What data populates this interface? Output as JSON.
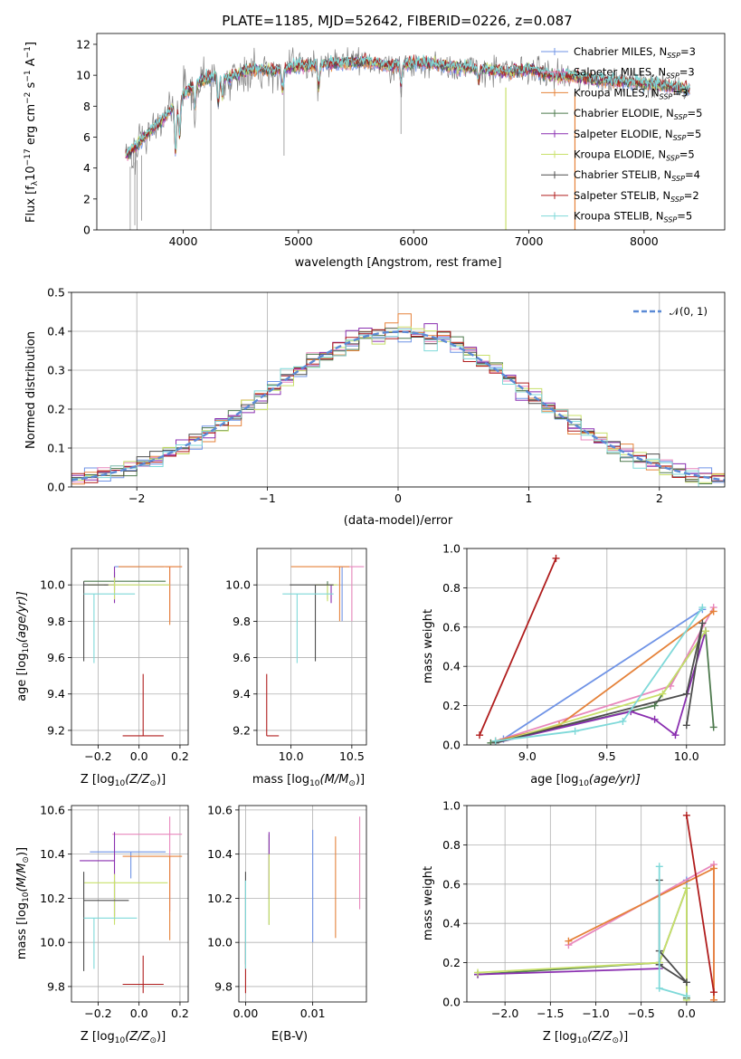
{
  "title": "PLATE=1185, MJD=52642, FIBERID=0226, z=0.087",
  "colors": {
    "Chabrier MILES": "#6f93e6",
    "Salpeter MILES": "#e887bd",
    "Kroupa MILES": "#e5823a",
    "Chabrier ELODIE": "#4e7a4e",
    "Salpeter ELODIE": "#8a2fb0",
    "Kroupa ELODIE": "#c8e06a",
    "Chabrier STELIB": "#4d4d4d",
    "Salpeter STELIB": "#b01d1d",
    "Kroupa STELIB": "#7fd9d9",
    "data": "#808080",
    "normal": "#5b8ad6"
  },
  "chart_data": [
    {
      "id": "spectrum",
      "type": "line",
      "xlabel": "wavelength [Angstrom, rest frame]",
      "ylabel": "Flux [f",
      "xlim": [
        3250,
        8700
      ],
      "ylim": [
        0,
        12.7
      ],
      "xticks": [
        4000,
        5000,
        6000,
        7000,
        8000
      ],
      "yticks": [
        0,
        2,
        4,
        6,
        8,
        10,
        12
      ],
      "grid": false,
      "legend_position": "top-right",
      "legend": [
        {
          "label": "Chabrier MILES, N",
          "n": "=3"
        },
        {
          "label": "Salpeter MILES, N",
          "n": "=3"
        },
        {
          "label": "Kroupa MILES, N",
          "n": "=3"
        },
        {
          "label": "Chabrier ELODIE, N",
          "n": "=5"
        },
        {
          "label": "Salpeter ELODIE, N",
          "n": "=5"
        },
        {
          "label": "Kroupa ELODIE, N",
          "n": "=5"
        },
        {
          "label": "Chabrier STELIB, N",
          "n": "=4"
        },
        {
          "label": "Salpeter STELIB, N",
          "n": "=2"
        },
        {
          "label": "Kroupa STELIB, N",
          "n": "=5"
        }
      ],
      "continuum": {
        "x": [
          3500,
          3600,
          3700,
          3800,
          3900,
          4000,
          4100,
          4200,
          4300,
          4400,
          4500,
          4600,
          4800,
          5000,
          5200,
          5400,
          5600,
          5800,
          6000,
          6200,
          6400,
          6600,
          6800,
          7000,
          7200,
          7400,
          7600,
          7800,
          8000,
          8200,
          8400
        ],
        "y": [
          4.8,
          5.5,
          6.3,
          7.0,
          7.8,
          8.8,
          9.4,
          9.8,
          10.0,
          9.8,
          10.2,
          10.4,
          10.3,
          10.6,
          10.7,
          10.8,
          10.9,
          10.6,
          10.8,
          10.7,
          10.5,
          10.4,
          10.2,
          10.4,
          10.0,
          9.9,
          9.7,
          9.6,
          9.5,
          9.3,
          9.1
        ]
      }
    },
    {
      "id": "residuals",
      "type": "histogram",
      "xlabel": "(data-model)/error",
      "ylabel": "Normed distribution",
      "xlim": [
        -2.5,
        2.5
      ],
      "ylim": [
        0,
        0.5
      ],
      "xticks": [
        -2,
        -1,
        0,
        1,
        2
      ],
      "yticks": [
        0.0,
        0.1,
        0.2,
        0.3,
        0.4,
        0.5
      ],
      "grid": true,
      "legend_position": "top-right",
      "legend_label": "𝒩(0, 1)",
      "bin_width": 0.1
    },
    {
      "id": "age-vs-Z",
      "type": "errorbar",
      "xlabel": "Z [log",
      "ylabel": "age  [log",
      "xlim": [
        -0.33,
        0.24
      ],
      "ylim": [
        9.12,
        10.2
      ],
      "xticks": [
        -0.2,
        0.0,
        0.2
      ],
      "yticks": [
        9.2,
        9.4,
        9.6,
        9.8,
        10.0
      ],
      "grid": true,
      "points": [
        {
          "model": "Chabrier MILES",
          "x": -0.04,
          "xerr": [
            0.08,
            0.16
          ],
          "y": 10.1,
          "yerr": [
            0.0,
            0.0
          ]
        },
        {
          "model": "Salpeter MILES",
          "x": 0.15,
          "xerr": [
            0.02,
            0.06
          ],
          "y": 10.1,
          "yerr": [
            0.3,
            0.0
          ]
        },
        {
          "model": "Kroupa MILES",
          "x": 0.15,
          "xerr": [
            0.25,
            0.06
          ],
          "y": 10.1,
          "yerr": [
            0.32,
            0.0
          ]
        },
        {
          "model": "Chabrier ELODIE",
          "x": -0.12,
          "xerr": [
            0.15,
            0.25
          ],
          "y": 10.02,
          "yerr": [
            0.05,
            0.05
          ]
        },
        {
          "model": "Salpeter ELODIE",
          "x": -0.12,
          "xerr": [
            0.05,
            0.0
          ],
          "y": 10.0,
          "yerr": [
            0.1,
            0.1
          ]
        },
        {
          "model": "Kroupa ELODIE",
          "x": -0.12,
          "xerr": [
            0.13,
            0.27
          ],
          "y": 10.0,
          "yerr": [
            0.08,
            0.04
          ]
        },
        {
          "model": "Chabrier STELIB",
          "x": -0.27,
          "xerr": [
            0.0,
            0.12
          ],
          "y": 10.0,
          "yerr": [
            0.42,
            0.02
          ]
        },
        {
          "model": "Salpeter STELIB",
          "x": 0.02,
          "xerr": [
            0.1,
            0.1
          ],
          "y": 9.17,
          "yerr": [
            0.0,
            0.34
          ]
        },
        {
          "model": "Kroupa STELIB",
          "x": -0.22,
          "xerr": [
            0.05,
            0.2
          ],
          "y": 9.95,
          "yerr": [
            0.38,
            0.0
          ]
        }
      ]
    },
    {
      "id": "age-vs-mass",
      "type": "errorbar",
      "xlabel": "mass [log",
      "ylabel": "",
      "xlim": [
        9.72,
        10.62
      ],
      "ylim": [
        9.12,
        10.2
      ],
      "xticks": [
        10.0,
        10.5
      ],
      "yticks": [
        9.2,
        9.4,
        9.6,
        9.8,
        10.0
      ],
      "grid": true,
      "points": [
        {
          "model": "Chabrier MILES",
          "x": 10.42,
          "xerr": [
            0.0,
            0.0
          ],
          "y": 10.1,
          "yerr": [
            0.3,
            0.0
          ]
        },
        {
          "model": "Salpeter MILES",
          "x": 10.5,
          "xerr": [
            0.15,
            0.1
          ],
          "y": 10.1,
          "yerr": [
            0.3,
            0.0
          ]
        },
        {
          "model": "Kroupa MILES",
          "x": 10.4,
          "xerr": [
            0.4,
            0.08
          ],
          "y": 10.1,
          "yerr": [
            0.3,
            0.0
          ]
        },
        {
          "model": "Chabrier ELODIE",
          "x": 10.3,
          "xerr": [
            0.0,
            0.0
          ],
          "y": 10.02,
          "yerr": [
            0.1,
            0.0
          ]
        },
        {
          "model": "Salpeter ELODIE",
          "x": 10.33,
          "xerr": [
            0.0,
            0.0
          ],
          "y": 10.0,
          "yerr": [
            0.1,
            0.0
          ]
        },
        {
          "model": "Kroupa ELODIE",
          "x": 10.3,
          "xerr": [
            0.1,
            0.08
          ],
          "y": 10.0,
          "yerr": [
            0.09,
            0.0
          ]
        },
        {
          "model": "Chabrier STELIB",
          "x": 10.2,
          "xerr": [
            0.21,
            0.15
          ],
          "y": 10.0,
          "yerr": [
            0.42,
            0.0
          ]
        },
        {
          "model": "Salpeter STELIB",
          "x": 9.8,
          "xerr": [
            0.0,
            0.1
          ],
          "y": 9.17,
          "yerr": [
            0.0,
            0.34
          ]
        },
        {
          "model": "Kroupa STELIB",
          "x": 10.05,
          "xerr": [
            0.12,
            0.3
          ],
          "y": 9.95,
          "yerr": [
            0.38,
            0.0
          ]
        }
      ]
    },
    {
      "id": "massweight-vs-age",
      "type": "line",
      "xlabel": "age  [log",
      "ylabel": "mass weight",
      "xlim": [
        8.62,
        10.24
      ],
      "ylim": [
        0,
        1.0
      ],
      "xticks": [
        9.0,
        9.5,
        10.0
      ],
      "yticks": [
        0.0,
        0.2,
        0.4,
        0.6,
        0.8,
        1.0
      ],
      "grid": true,
      "series": [
        {
          "model": "Chabrier MILES",
          "x": [
            8.85,
            10.1
          ],
          "y": [
            0.03,
            0.69
          ]
        },
        {
          "model": "Salpeter MILES",
          "x": [
            8.8,
            9.9,
            10.17
          ],
          "y": [
            0.02,
            0.3,
            0.7
          ]
        },
        {
          "model": "Kroupa MILES",
          "x": [
            8.8,
            9.2,
            10.17
          ],
          "y": [
            0.02,
            0.1,
            0.68
          ]
        },
        {
          "model": "Chabrier ELODIE",
          "x": [
            8.77,
            9.8,
            10.12,
            10.17
          ],
          "y": [
            0.01,
            0.2,
            0.58,
            0.09
          ]
        },
        {
          "model": "Salpeter ELODIE",
          "x": [
            8.8,
            9.65,
            9.8,
            9.93,
            10.12
          ],
          "y": [
            0.01,
            0.17,
            0.13,
            0.05,
            0.58
          ]
        },
        {
          "model": "Kroupa ELODIE",
          "x": [
            8.8,
            9.85,
            10.12
          ],
          "y": [
            0.01,
            0.26,
            0.58
          ]
        },
        {
          "model": "Chabrier STELIB",
          "x": [
            8.8,
            10.0,
            10.1,
            10.0
          ],
          "y": [
            0.01,
            0.26,
            0.62,
            0.1
          ]
        },
        {
          "model": "Salpeter STELIB",
          "x": [
            8.7,
            9.18
          ],
          "y": [
            0.05,
            0.95
          ]
        },
        {
          "model": "Kroupa STELIB",
          "x": [
            8.8,
            9.3,
            9.6,
            10.1
          ],
          "y": [
            0.02,
            0.07,
            0.12,
            0.7
          ]
        }
      ]
    },
    {
      "id": "mass-vs-Z",
      "type": "errorbar",
      "xlabel": "Z [log",
      "ylabel": "mass [log",
      "xlim": [
        -0.33,
        0.24
      ],
      "ylim": [
        9.73,
        10.62
      ],
      "xticks": [
        -0.2,
        0.0,
        0.2
      ],
      "yticks": [
        9.8,
        10.0,
        10.2,
        10.4,
        10.6
      ],
      "grid": true,
      "points": [
        {
          "model": "Chabrier MILES",
          "x": -0.04,
          "xerr": [
            0.2,
            0.17
          ],
          "y": 10.41,
          "yerr": [
            0.12,
            0.0
          ]
        },
        {
          "model": "Salpeter MILES",
          "x": 0.15,
          "xerr": [
            0.28,
            0.06
          ],
          "y": 10.49,
          "yerr": [
            0.35,
            0.08
          ]
        },
        {
          "model": "Kroupa MILES",
          "x": 0.15,
          "xerr": [
            0.23,
            0.06
          ],
          "y": 10.39,
          "yerr": [
            0.38,
            0.0
          ]
        },
        {
          "model": "Chabrier ELODIE",
          "x": -0.12,
          "xerr": [
            0.0,
            0.0
          ],
          "y": 10.28,
          "yerr": [
            0.18,
            0.0
          ]
        },
        {
          "model": "Salpeter ELODIE",
          "x": -0.12,
          "xerr": [
            0.17,
            0.0
          ],
          "y": 10.37,
          "yerr": [
            0.25,
            0.13
          ]
        },
        {
          "model": "Kroupa ELODIE",
          "x": -0.12,
          "xerr": [
            0.15,
            0.26
          ],
          "y": 10.27,
          "yerr": [
            0.19,
            0.04
          ]
        },
        {
          "model": "Chabrier STELIB",
          "x": -0.27,
          "xerr": [
            0.0,
            0.22
          ],
          "y": 10.19,
          "yerr": [
            0.32,
            0.13
          ]
        },
        {
          "model": "Salpeter STELIB",
          "x": 0.02,
          "xerr": [
            0.1,
            0.1
          ],
          "y": 9.81,
          "yerr": [
            0.04,
            0.13
          ]
        },
        {
          "model": "Kroupa STELIB",
          "x": -0.22,
          "xerr": [
            0.05,
            0.21
          ],
          "y": 10.11,
          "yerr": [
            0.23,
            0.0
          ]
        }
      ]
    },
    {
      "id": "mass-vs-EBV",
      "type": "errorbar",
      "xlabel": "E(B-V)",
      "ylabel": "",
      "xlim": [
        -0.001,
        0.018
      ],
      "ylim": [
        9.73,
        10.62
      ],
      "xticks": [
        0.0,
        0.01
      ],
      "yticks": [
        9.8,
        10.0,
        10.2,
        10.4,
        10.6
      ],
      "grid": true,
      "points": [
        {
          "model": "Chabrier MILES",
          "x": 0.01,
          "xerr": [
            0.0,
            0.0
          ],
          "y": 10.3,
          "yerr": [
            0.3,
            0.21
          ]
        },
        {
          "model": "Salpeter MILES",
          "x": 0.017,
          "xerr": [
            0.0,
            0.0
          ],
          "y": 10.36,
          "yerr": [
            0.21,
            0.21
          ]
        },
        {
          "model": "Kroupa MILES",
          "x": 0.0134,
          "xerr": [
            0.0,
            0.0
          ],
          "y": 10.25,
          "yerr": [
            0.23,
            0.23
          ]
        },
        {
          "model": "Chabrier ELODIE",
          "x": 0.0035,
          "xerr": [
            0.0,
            0.0
          ],
          "y": 10.3,
          "yerr": [
            0.22,
            0.19
          ]
        },
        {
          "model": "Salpeter ELODIE",
          "x": 0.0035,
          "xerr": [
            0.0,
            0.0
          ],
          "y": 10.4,
          "yerr": [
            0.2,
            0.1
          ]
        },
        {
          "model": "Kroupa ELODIE",
          "x": 0.0035,
          "xerr": [
            0.0,
            0.0
          ],
          "y": 10.27,
          "yerr": [
            0.19,
            0.13
          ]
        },
        {
          "model": "Chabrier STELIB",
          "x": 0.0,
          "xerr": [
            0.0,
            0.0
          ],
          "y": 10.1,
          "yerr": [
            0.2,
            0.22
          ]
        },
        {
          "model": "Salpeter STELIB",
          "x": 0.0,
          "xerr": [
            0.0,
            0.0
          ],
          "y": 9.9,
          "yerr": [
            0.13,
            0.1
          ]
        },
        {
          "model": "Kroupa STELIB",
          "x": 0.0,
          "xerr": [
            0.0,
            0.0
          ],
          "y": 10.1,
          "yerr": [
            0.22,
            0.18
          ]
        }
      ]
    },
    {
      "id": "massweight-vs-Z",
      "type": "line",
      "xlabel": "Z [log",
      "ylabel": "mass weight",
      "xlim": [
        -2.42,
        0.42
      ],
      "ylim": [
        0,
        1.0
      ],
      "xticks": [
        -2.0,
        -1.5,
        -1.0,
        -0.5,
        0.0
      ],
      "yticks": [
        0.0,
        0.2,
        0.4,
        0.6,
        0.8,
        1.0
      ],
      "grid": true,
      "series": [
        {
          "model": "Chabrier MILES",
          "x": [
            0.0,
            0.0
          ],
          "y": [
            0.1,
            0.62
          ]
        },
        {
          "model": "Salpeter MILES",
          "x": [
            -1.3,
            0.3,
            0.3
          ],
          "y": [
            0.29,
            0.7,
            0.01
          ]
        },
        {
          "model": "Kroupa MILES",
          "x": [
            -1.3,
            0.3,
            0.3
          ],
          "y": [
            0.31,
            0.68,
            0.01
          ]
        },
        {
          "model": "Chabrier ELODIE",
          "x": [
            -2.3,
            -0.3,
            0.0,
            0.0
          ],
          "y": [
            0.14,
            0.2,
            0.58,
            0.02
          ]
        },
        {
          "model": "Salpeter ELODIE",
          "x": [
            -2.3,
            -0.3,
            -0.3
          ],
          "y": [
            0.14,
            0.17,
            0.19
          ]
        },
        {
          "model": "Kroupa ELODIE",
          "x": [
            -2.3,
            -0.3,
            0.0,
            0.0
          ],
          "y": [
            0.15,
            0.2,
            0.58,
            0.01
          ]
        },
        {
          "model": "Chabrier STELIB",
          "x": [
            -0.3,
            0.0,
            -0.3,
            -0.3
          ],
          "y": [
            0.26,
            0.1,
            0.19,
            0.62
          ]
        },
        {
          "model": "Salpeter STELIB",
          "x": [
            0.0,
            0.3
          ],
          "y": [
            0.95,
            0.05
          ]
        },
        {
          "model": "Kroupa STELIB",
          "x": [
            -0.3,
            -0.3,
            0.0
          ],
          "y": [
            0.69,
            0.07,
            0.03
          ]
        }
      ]
    }
  ],
  "labels": {
    "spec_ylabel_rest": "10",
    "spec_ylabel_exp": "−17",
    "spec_ylabel_unit1": " erg cm",
    "spec_ylabel_unit2": " s",
    "spec_ylabel_unit3": " A",
    "spec_ylabel_end": "]",
    "exp_m2": "−2",
    "exp_m1": "−1",
    "lambda_sub": "λ",
    "ssp_sub": "SSP",
    "log_sub": "10",
    "z_frac": "(Z/Z",
    "sun_sub": "⊙",
    "close": ")]",
    "age_frac": "(age/yr)]",
    "mass_frac": "(M/M",
    "age_frac2": "(age/yr)]"
  }
}
